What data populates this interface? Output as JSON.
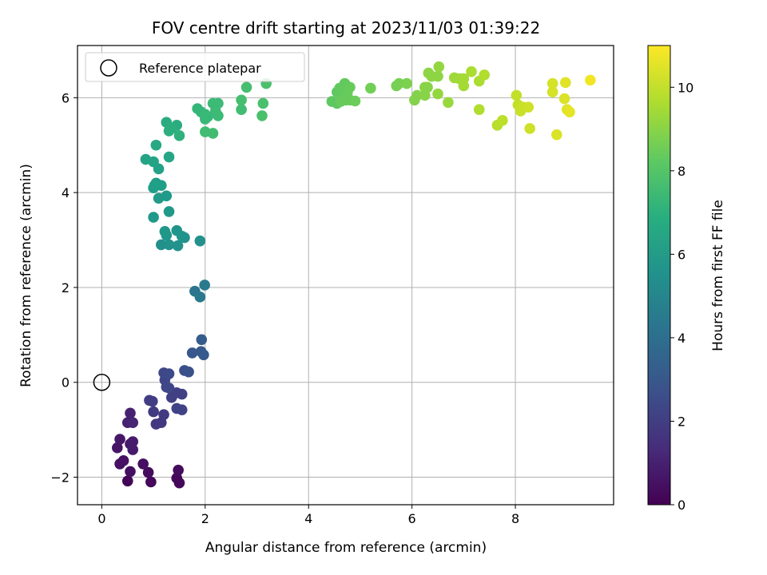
{
  "chart_data": {
    "type": "scatter",
    "title": "FOV centre drift starting at 2023/11/03 01:39:22",
    "xlabel": "Angular distance from reference (arcmin)",
    "ylabel": "Rotation from reference (arcmin)",
    "xlim": [
      -0.47,
      9.9
    ],
    "ylim": [
      -2.58,
      7.1
    ],
    "xticks": [
      "0",
      "2",
      "4",
      "6",
      "8"
    ],
    "yticks": [
      "−2",
      "0",
      "2",
      "4",
      "6"
    ],
    "grid": true,
    "legend": {
      "position": "top-left",
      "entries": [
        "Reference platepar"
      ]
    },
    "reference_point": {
      "x": 0,
      "y": 0
    },
    "colorbar": {
      "label": "Hours from first FF file",
      "min": 0,
      "max": 11,
      "ticks": [
        "0",
        "2",
        "4",
        "6",
        "8",
        "10"
      ],
      "colormap": "viridis"
    },
    "points": [
      {
        "x": 0.5,
        "y": -2.08,
        "h": 0.1
      },
      {
        "x": 0.95,
        "y": -2.1,
        "h": 0.2
      },
      {
        "x": 1.45,
        "y": -2.02,
        "h": 0.2
      },
      {
        "x": 1.5,
        "y": -2.12,
        "h": 0.2
      },
      {
        "x": 1.48,
        "y": -1.85,
        "h": 0.3
      },
      {
        "x": 0.9,
        "y": -1.9,
        "h": 0.3
      },
      {
        "x": 0.8,
        "y": -1.72,
        "h": 0.4
      },
      {
        "x": 0.55,
        "y": -1.88,
        "h": 0.4
      },
      {
        "x": 0.35,
        "y": -1.72,
        "h": 0.5
      },
      {
        "x": 0.42,
        "y": -1.65,
        "h": 0.5
      },
      {
        "x": 0.3,
        "y": -1.38,
        "h": 0.6
      },
      {
        "x": 0.35,
        "y": -1.2,
        "h": 0.7
      },
      {
        "x": 0.55,
        "y": -1.3,
        "h": 0.7
      },
      {
        "x": 0.6,
        "y": -1.25,
        "h": 0.8
      },
      {
        "x": 0.6,
        "y": -1.42,
        "h": 0.8
      },
      {
        "x": 0.5,
        "y": -0.85,
        "h": 1.0
      },
      {
        "x": 0.55,
        "y": -0.65,
        "h": 1.0
      },
      {
        "x": 0.6,
        "y": -0.85,
        "h": 1.1
      },
      {
        "x": 1.05,
        "y": -0.88,
        "h": 1.8
      },
      {
        "x": 1.15,
        "y": -0.85,
        "h": 1.8
      },
      {
        "x": 1.2,
        "y": -0.68,
        "h": 1.9
      },
      {
        "x": 1.0,
        "y": -0.62,
        "h": 1.9
      },
      {
        "x": 0.92,
        "y": -0.38,
        "h": 2.0
      },
      {
        "x": 0.98,
        "y": -0.4,
        "h": 2.0
      },
      {
        "x": 1.35,
        "y": -0.32,
        "h": 2.1
      },
      {
        "x": 1.45,
        "y": -0.22,
        "h": 2.1
      },
      {
        "x": 1.55,
        "y": -0.25,
        "h": 2.1
      },
      {
        "x": 1.45,
        "y": -0.55,
        "h": 2.2
      },
      {
        "x": 1.55,
        "y": -0.58,
        "h": 2.2
      },
      {
        "x": 1.3,
        "y": -0.12,
        "h": 2.3
      },
      {
        "x": 1.22,
        "y": 0.05,
        "h": 2.3
      },
      {
        "x": 1.25,
        "y": -0.1,
        "h": 2.4
      },
      {
        "x": 1.2,
        "y": 0.2,
        "h": 2.4
      },
      {
        "x": 1.3,
        "y": 0.18,
        "h": 2.5
      },
      {
        "x": 1.6,
        "y": 0.25,
        "h": 2.7
      },
      {
        "x": 1.68,
        "y": 0.22,
        "h": 2.8
      },
      {
        "x": 1.75,
        "y": 0.62,
        "h": 3.0
      },
      {
        "x": 1.92,
        "y": 0.65,
        "h": 3.1
      },
      {
        "x": 1.97,
        "y": 0.58,
        "h": 3.1
      },
      {
        "x": 1.93,
        "y": 0.9,
        "h": 3.2
      },
      {
        "x": 1.8,
        "y": 1.92,
        "h": 4.3
      },
      {
        "x": 1.9,
        "y": 1.8,
        "h": 4.4
      },
      {
        "x": 1.99,
        "y": 2.05,
        "h": 4.5
      },
      {
        "x": 1.9,
        "y": 2.98,
        "h": 5.5
      },
      {
        "x": 1.15,
        "y": 2.9,
        "h": 5.5
      },
      {
        "x": 1.3,
        "y": 2.9,
        "h": 5.6
      },
      {
        "x": 1.47,
        "y": 2.88,
        "h": 5.6
      },
      {
        "x": 1.6,
        "y": 3.05,
        "h": 5.6
      },
      {
        "x": 1.55,
        "y": 3.08,
        "h": 5.7
      },
      {
        "x": 1.45,
        "y": 3.2,
        "h": 5.7
      },
      {
        "x": 1.25,
        "y": 3.1,
        "h": 5.7
      },
      {
        "x": 1.22,
        "y": 3.18,
        "h": 5.8
      },
      {
        "x": 1.0,
        "y": 3.48,
        "h": 5.9
      },
      {
        "x": 1.3,
        "y": 3.6,
        "h": 5.9
      },
      {
        "x": 1.1,
        "y": 3.88,
        "h": 6.0
      },
      {
        "x": 1.25,
        "y": 3.93,
        "h": 6.0
      },
      {
        "x": 1.0,
        "y": 4.1,
        "h": 6.1
      },
      {
        "x": 1.05,
        "y": 4.2,
        "h": 6.1
      },
      {
        "x": 1.15,
        "y": 4.15,
        "h": 6.1
      },
      {
        "x": 1.02,
        "y": 4.15,
        "h": 6.2
      },
      {
        "x": 1.1,
        "y": 4.5,
        "h": 6.3
      },
      {
        "x": 0.85,
        "y": 4.7,
        "h": 6.4
      },
      {
        "x": 1.0,
        "y": 4.65,
        "h": 6.4
      },
      {
        "x": 1.3,
        "y": 4.75,
        "h": 6.5
      },
      {
        "x": 1.05,
        "y": 5.0,
        "h": 6.6
      },
      {
        "x": 1.25,
        "y": 5.48,
        "h": 6.8
      },
      {
        "x": 1.45,
        "y": 5.42,
        "h": 6.8
      },
      {
        "x": 1.3,
        "y": 5.3,
        "h": 6.9
      },
      {
        "x": 1.35,
        "y": 5.35,
        "h": 6.9
      },
      {
        "x": 1.5,
        "y": 5.2,
        "h": 7.0
      },
      {
        "x": 1.85,
        "y": 5.77,
        "h": 7.3
      },
      {
        "x": 1.92,
        "y": 5.7,
        "h": 7.3
      },
      {
        "x": 2.0,
        "y": 5.55,
        "h": 7.4
      },
      {
        "x": 2.0,
        "y": 5.65,
        "h": 7.4
      },
      {
        "x": 2.05,
        "y": 5.6,
        "h": 7.4
      },
      {
        "x": 2.15,
        "y": 5.88,
        "h": 7.5
      },
      {
        "x": 2.2,
        "y": 5.72,
        "h": 7.5
      },
      {
        "x": 2.25,
        "y": 5.88,
        "h": 7.5
      },
      {
        "x": 2.25,
        "y": 5.62,
        "h": 7.5
      },
      {
        "x": 2.0,
        "y": 5.28,
        "h": 7.6
      },
      {
        "x": 2.15,
        "y": 5.25,
        "h": 7.6
      },
      {
        "x": 2.7,
        "y": 5.75,
        "h": 7.6
      },
      {
        "x": 2.7,
        "y": 5.95,
        "h": 7.7
      },
      {
        "x": 2.8,
        "y": 6.22,
        "h": 7.7
      },
      {
        "x": 3.1,
        "y": 5.62,
        "h": 7.8
      },
      {
        "x": 3.12,
        "y": 5.88,
        "h": 7.8
      },
      {
        "x": 3.18,
        "y": 6.3,
        "h": 7.8
      },
      {
        "x": 4.45,
        "y": 5.92,
        "h": 8.2
      },
      {
        "x": 4.55,
        "y": 5.88,
        "h": 8.2
      },
      {
        "x": 4.55,
        "y": 6.12,
        "h": 8.2
      },
      {
        "x": 4.6,
        "y": 6.2,
        "h": 8.3
      },
      {
        "x": 4.65,
        "y": 6.0,
        "h": 8.3
      },
      {
        "x": 4.68,
        "y": 6.15,
        "h": 8.3
      },
      {
        "x": 4.7,
        "y": 6.3,
        "h": 8.3
      },
      {
        "x": 4.72,
        "y": 5.95,
        "h": 8.3
      },
      {
        "x": 4.75,
        "y": 6.1,
        "h": 8.4
      },
      {
        "x": 4.8,
        "y": 6.22,
        "h": 8.4
      },
      {
        "x": 4.62,
        "y": 5.92,
        "h": 8.4
      },
      {
        "x": 4.8,
        "y": 5.95,
        "h": 8.4
      },
      {
        "x": 4.9,
        "y": 5.93,
        "h": 8.5
      },
      {
        "x": 5.2,
        "y": 6.2,
        "h": 8.6
      },
      {
        "x": 5.7,
        "y": 6.25,
        "h": 8.7
      },
      {
        "x": 5.75,
        "y": 6.3,
        "h": 8.7
      },
      {
        "x": 5.9,
        "y": 6.3,
        "h": 8.8
      },
      {
        "x": 6.05,
        "y": 5.95,
        "h": 8.9
      },
      {
        "x": 6.1,
        "y": 6.05,
        "h": 8.9
      },
      {
        "x": 6.25,
        "y": 6.05,
        "h": 9.0
      },
      {
        "x": 6.25,
        "y": 6.22,
        "h": 9.0
      },
      {
        "x": 6.3,
        "y": 6.22,
        "h": 9.0
      },
      {
        "x": 6.32,
        "y": 6.52,
        "h": 9.1
      },
      {
        "x": 6.38,
        "y": 6.45,
        "h": 9.1
      },
      {
        "x": 6.5,
        "y": 6.45,
        "h": 9.1
      },
      {
        "x": 6.5,
        "y": 6.08,
        "h": 9.2
      },
      {
        "x": 6.52,
        "y": 6.65,
        "h": 9.2
      },
      {
        "x": 6.7,
        "y": 5.9,
        "h": 9.3
      },
      {
        "x": 6.82,
        "y": 6.42,
        "h": 9.4
      },
      {
        "x": 6.92,
        "y": 6.4,
        "h": 9.4
      },
      {
        "x": 7.0,
        "y": 6.4,
        "h": 9.5
      },
      {
        "x": 7.0,
        "y": 6.25,
        "h": 9.5
      },
      {
        "x": 7.15,
        "y": 6.55,
        "h": 9.6
      },
      {
        "x": 7.3,
        "y": 6.35,
        "h": 9.6
      },
      {
        "x": 7.4,
        "y": 6.48,
        "h": 9.7
      },
      {
        "x": 7.3,
        "y": 5.75,
        "h": 9.7
      },
      {
        "x": 7.65,
        "y": 5.42,
        "h": 9.8
      },
      {
        "x": 7.75,
        "y": 5.52,
        "h": 9.9
      },
      {
        "x": 8.02,
        "y": 6.05,
        "h": 10.0
      },
      {
        "x": 8.05,
        "y": 5.85,
        "h": 10.0
      },
      {
        "x": 8.1,
        "y": 5.72,
        "h": 10.1
      },
      {
        "x": 8.15,
        "y": 5.8,
        "h": 10.1
      },
      {
        "x": 8.25,
        "y": 5.8,
        "h": 10.2
      },
      {
        "x": 8.28,
        "y": 5.35,
        "h": 10.2
      },
      {
        "x": 8.72,
        "y": 6.3,
        "h": 10.3
      },
      {
        "x": 8.72,
        "y": 6.12,
        "h": 10.3
      },
      {
        "x": 8.8,
        "y": 5.22,
        "h": 10.4
      },
      {
        "x": 8.95,
        "y": 5.98,
        "h": 10.4
      },
      {
        "x": 8.97,
        "y": 6.32,
        "h": 10.5
      },
      {
        "x": 9.0,
        "y": 5.75,
        "h": 10.5
      },
      {
        "x": 9.05,
        "y": 5.7,
        "h": 10.6
      },
      {
        "x": 9.45,
        "y": 6.37,
        "h": 10.8
      }
    ]
  }
}
